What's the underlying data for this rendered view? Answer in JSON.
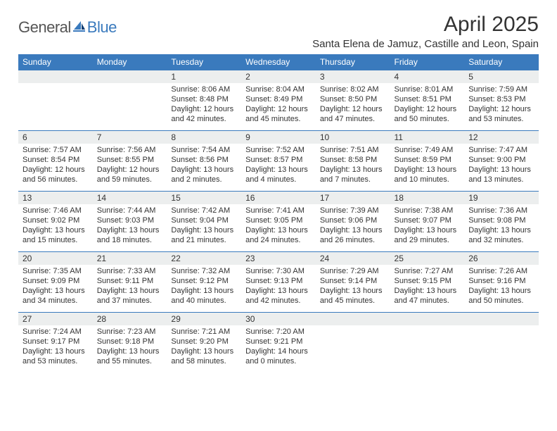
{
  "logo": {
    "general": "General",
    "blue": "Blue"
  },
  "title": "April 2025",
  "location": "Santa Elena de Jamuz, Castille and Leon, Spain",
  "weekdays": [
    "Sunday",
    "Monday",
    "Tuesday",
    "Wednesday",
    "Thursday",
    "Friday",
    "Saturday"
  ],
  "colors": {
    "brand": "#3a7abd",
    "header_bg": "#3a7abd",
    "header_text": "#ffffff",
    "daynum_bg": "#eceeee",
    "text": "#333333",
    "border": "#3a7abd",
    "background": "#ffffff"
  },
  "layout": {
    "cols": 7,
    "rows": 5,
    "cell_font_size": 11,
    "header_font_size": 12,
    "title_font_size": 30,
    "location_font_size": 15
  },
  "grid": [
    [
      {
        "n": "",
        "sr": "",
        "ss": "",
        "dl": ""
      },
      {
        "n": "",
        "sr": "",
        "ss": "",
        "dl": ""
      },
      {
        "n": "1",
        "sr": "Sunrise: 8:06 AM",
        "ss": "Sunset: 8:48 PM",
        "dl": "Daylight: 12 hours and 42 minutes."
      },
      {
        "n": "2",
        "sr": "Sunrise: 8:04 AM",
        "ss": "Sunset: 8:49 PM",
        "dl": "Daylight: 12 hours and 45 minutes."
      },
      {
        "n": "3",
        "sr": "Sunrise: 8:02 AM",
        "ss": "Sunset: 8:50 PM",
        "dl": "Daylight: 12 hours and 47 minutes."
      },
      {
        "n": "4",
        "sr": "Sunrise: 8:01 AM",
        "ss": "Sunset: 8:51 PM",
        "dl": "Daylight: 12 hours and 50 minutes."
      },
      {
        "n": "5",
        "sr": "Sunrise: 7:59 AM",
        "ss": "Sunset: 8:53 PM",
        "dl": "Daylight: 12 hours and 53 minutes."
      }
    ],
    [
      {
        "n": "6",
        "sr": "Sunrise: 7:57 AM",
        "ss": "Sunset: 8:54 PM",
        "dl": "Daylight: 12 hours and 56 minutes."
      },
      {
        "n": "7",
        "sr": "Sunrise: 7:56 AM",
        "ss": "Sunset: 8:55 PM",
        "dl": "Daylight: 12 hours and 59 minutes."
      },
      {
        "n": "8",
        "sr": "Sunrise: 7:54 AM",
        "ss": "Sunset: 8:56 PM",
        "dl": "Daylight: 13 hours and 2 minutes."
      },
      {
        "n": "9",
        "sr": "Sunrise: 7:52 AM",
        "ss": "Sunset: 8:57 PM",
        "dl": "Daylight: 13 hours and 4 minutes."
      },
      {
        "n": "10",
        "sr": "Sunrise: 7:51 AM",
        "ss": "Sunset: 8:58 PM",
        "dl": "Daylight: 13 hours and 7 minutes."
      },
      {
        "n": "11",
        "sr": "Sunrise: 7:49 AM",
        "ss": "Sunset: 8:59 PM",
        "dl": "Daylight: 13 hours and 10 minutes."
      },
      {
        "n": "12",
        "sr": "Sunrise: 7:47 AM",
        "ss": "Sunset: 9:00 PM",
        "dl": "Daylight: 13 hours and 13 minutes."
      }
    ],
    [
      {
        "n": "13",
        "sr": "Sunrise: 7:46 AM",
        "ss": "Sunset: 9:02 PM",
        "dl": "Daylight: 13 hours and 15 minutes."
      },
      {
        "n": "14",
        "sr": "Sunrise: 7:44 AM",
        "ss": "Sunset: 9:03 PM",
        "dl": "Daylight: 13 hours and 18 minutes."
      },
      {
        "n": "15",
        "sr": "Sunrise: 7:42 AM",
        "ss": "Sunset: 9:04 PM",
        "dl": "Daylight: 13 hours and 21 minutes."
      },
      {
        "n": "16",
        "sr": "Sunrise: 7:41 AM",
        "ss": "Sunset: 9:05 PM",
        "dl": "Daylight: 13 hours and 24 minutes."
      },
      {
        "n": "17",
        "sr": "Sunrise: 7:39 AM",
        "ss": "Sunset: 9:06 PM",
        "dl": "Daylight: 13 hours and 26 minutes."
      },
      {
        "n": "18",
        "sr": "Sunrise: 7:38 AM",
        "ss": "Sunset: 9:07 PM",
        "dl": "Daylight: 13 hours and 29 minutes."
      },
      {
        "n": "19",
        "sr": "Sunrise: 7:36 AM",
        "ss": "Sunset: 9:08 PM",
        "dl": "Daylight: 13 hours and 32 minutes."
      }
    ],
    [
      {
        "n": "20",
        "sr": "Sunrise: 7:35 AM",
        "ss": "Sunset: 9:09 PM",
        "dl": "Daylight: 13 hours and 34 minutes."
      },
      {
        "n": "21",
        "sr": "Sunrise: 7:33 AM",
        "ss": "Sunset: 9:11 PM",
        "dl": "Daylight: 13 hours and 37 minutes."
      },
      {
        "n": "22",
        "sr": "Sunrise: 7:32 AM",
        "ss": "Sunset: 9:12 PM",
        "dl": "Daylight: 13 hours and 40 minutes."
      },
      {
        "n": "23",
        "sr": "Sunrise: 7:30 AM",
        "ss": "Sunset: 9:13 PM",
        "dl": "Daylight: 13 hours and 42 minutes."
      },
      {
        "n": "24",
        "sr": "Sunrise: 7:29 AM",
        "ss": "Sunset: 9:14 PM",
        "dl": "Daylight: 13 hours and 45 minutes."
      },
      {
        "n": "25",
        "sr": "Sunrise: 7:27 AM",
        "ss": "Sunset: 9:15 PM",
        "dl": "Daylight: 13 hours and 47 minutes."
      },
      {
        "n": "26",
        "sr": "Sunrise: 7:26 AM",
        "ss": "Sunset: 9:16 PM",
        "dl": "Daylight: 13 hours and 50 minutes."
      }
    ],
    [
      {
        "n": "27",
        "sr": "Sunrise: 7:24 AM",
        "ss": "Sunset: 9:17 PM",
        "dl": "Daylight: 13 hours and 53 minutes."
      },
      {
        "n": "28",
        "sr": "Sunrise: 7:23 AM",
        "ss": "Sunset: 9:18 PM",
        "dl": "Daylight: 13 hours and 55 minutes."
      },
      {
        "n": "29",
        "sr": "Sunrise: 7:21 AM",
        "ss": "Sunset: 9:20 PM",
        "dl": "Daylight: 13 hours and 58 minutes."
      },
      {
        "n": "30",
        "sr": "Sunrise: 7:20 AM",
        "ss": "Sunset: 9:21 PM",
        "dl": "Daylight: 14 hours and 0 minutes."
      },
      {
        "n": "",
        "sr": "",
        "ss": "",
        "dl": ""
      },
      {
        "n": "",
        "sr": "",
        "ss": "",
        "dl": ""
      },
      {
        "n": "",
        "sr": "",
        "ss": "",
        "dl": ""
      }
    ]
  ]
}
